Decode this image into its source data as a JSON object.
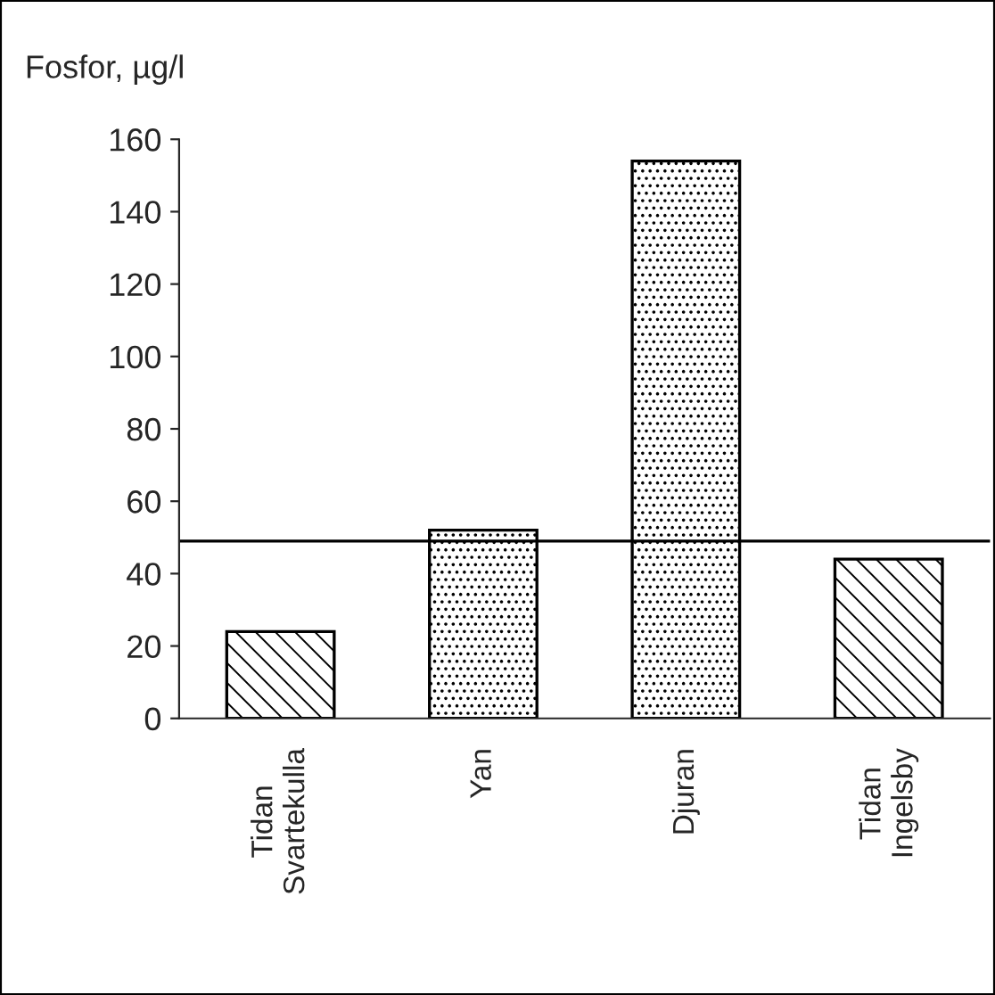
{
  "chart_data": {
    "type": "bar",
    "ylabel": "Fosfor, µg/l",
    "categories": [
      "Tidan\nSvartekulla",
      "Yan",
      "Djuran",
      "Tidan\nIngelsby"
    ],
    "values": [
      24,
      52,
      154,
      44
    ],
    "ylim": [
      0,
      160
    ],
    "yticks": [
      0,
      20,
      40,
      60,
      80,
      100,
      120,
      140,
      160
    ],
    "ref_lines": [
      {
        "axis": "y",
        "value": 49,
        "color": "#000000"
      }
    ],
    "grid": false
  }
}
